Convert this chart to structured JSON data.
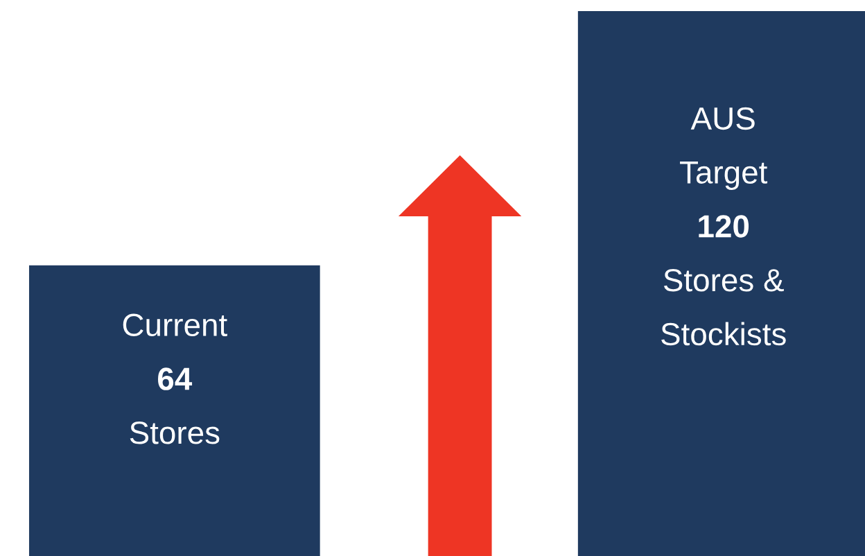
{
  "chart_data": {
    "type": "bar",
    "categories": [
      "Current",
      "AUS\nTarget"
    ],
    "values": [
      64,
      120
    ],
    "value_labels": [
      "64",
      "120"
    ],
    "annotations": [
      "Stores",
      "Stores &\nStockists"
    ],
    "color": "#1f3a5f"
  }
}
